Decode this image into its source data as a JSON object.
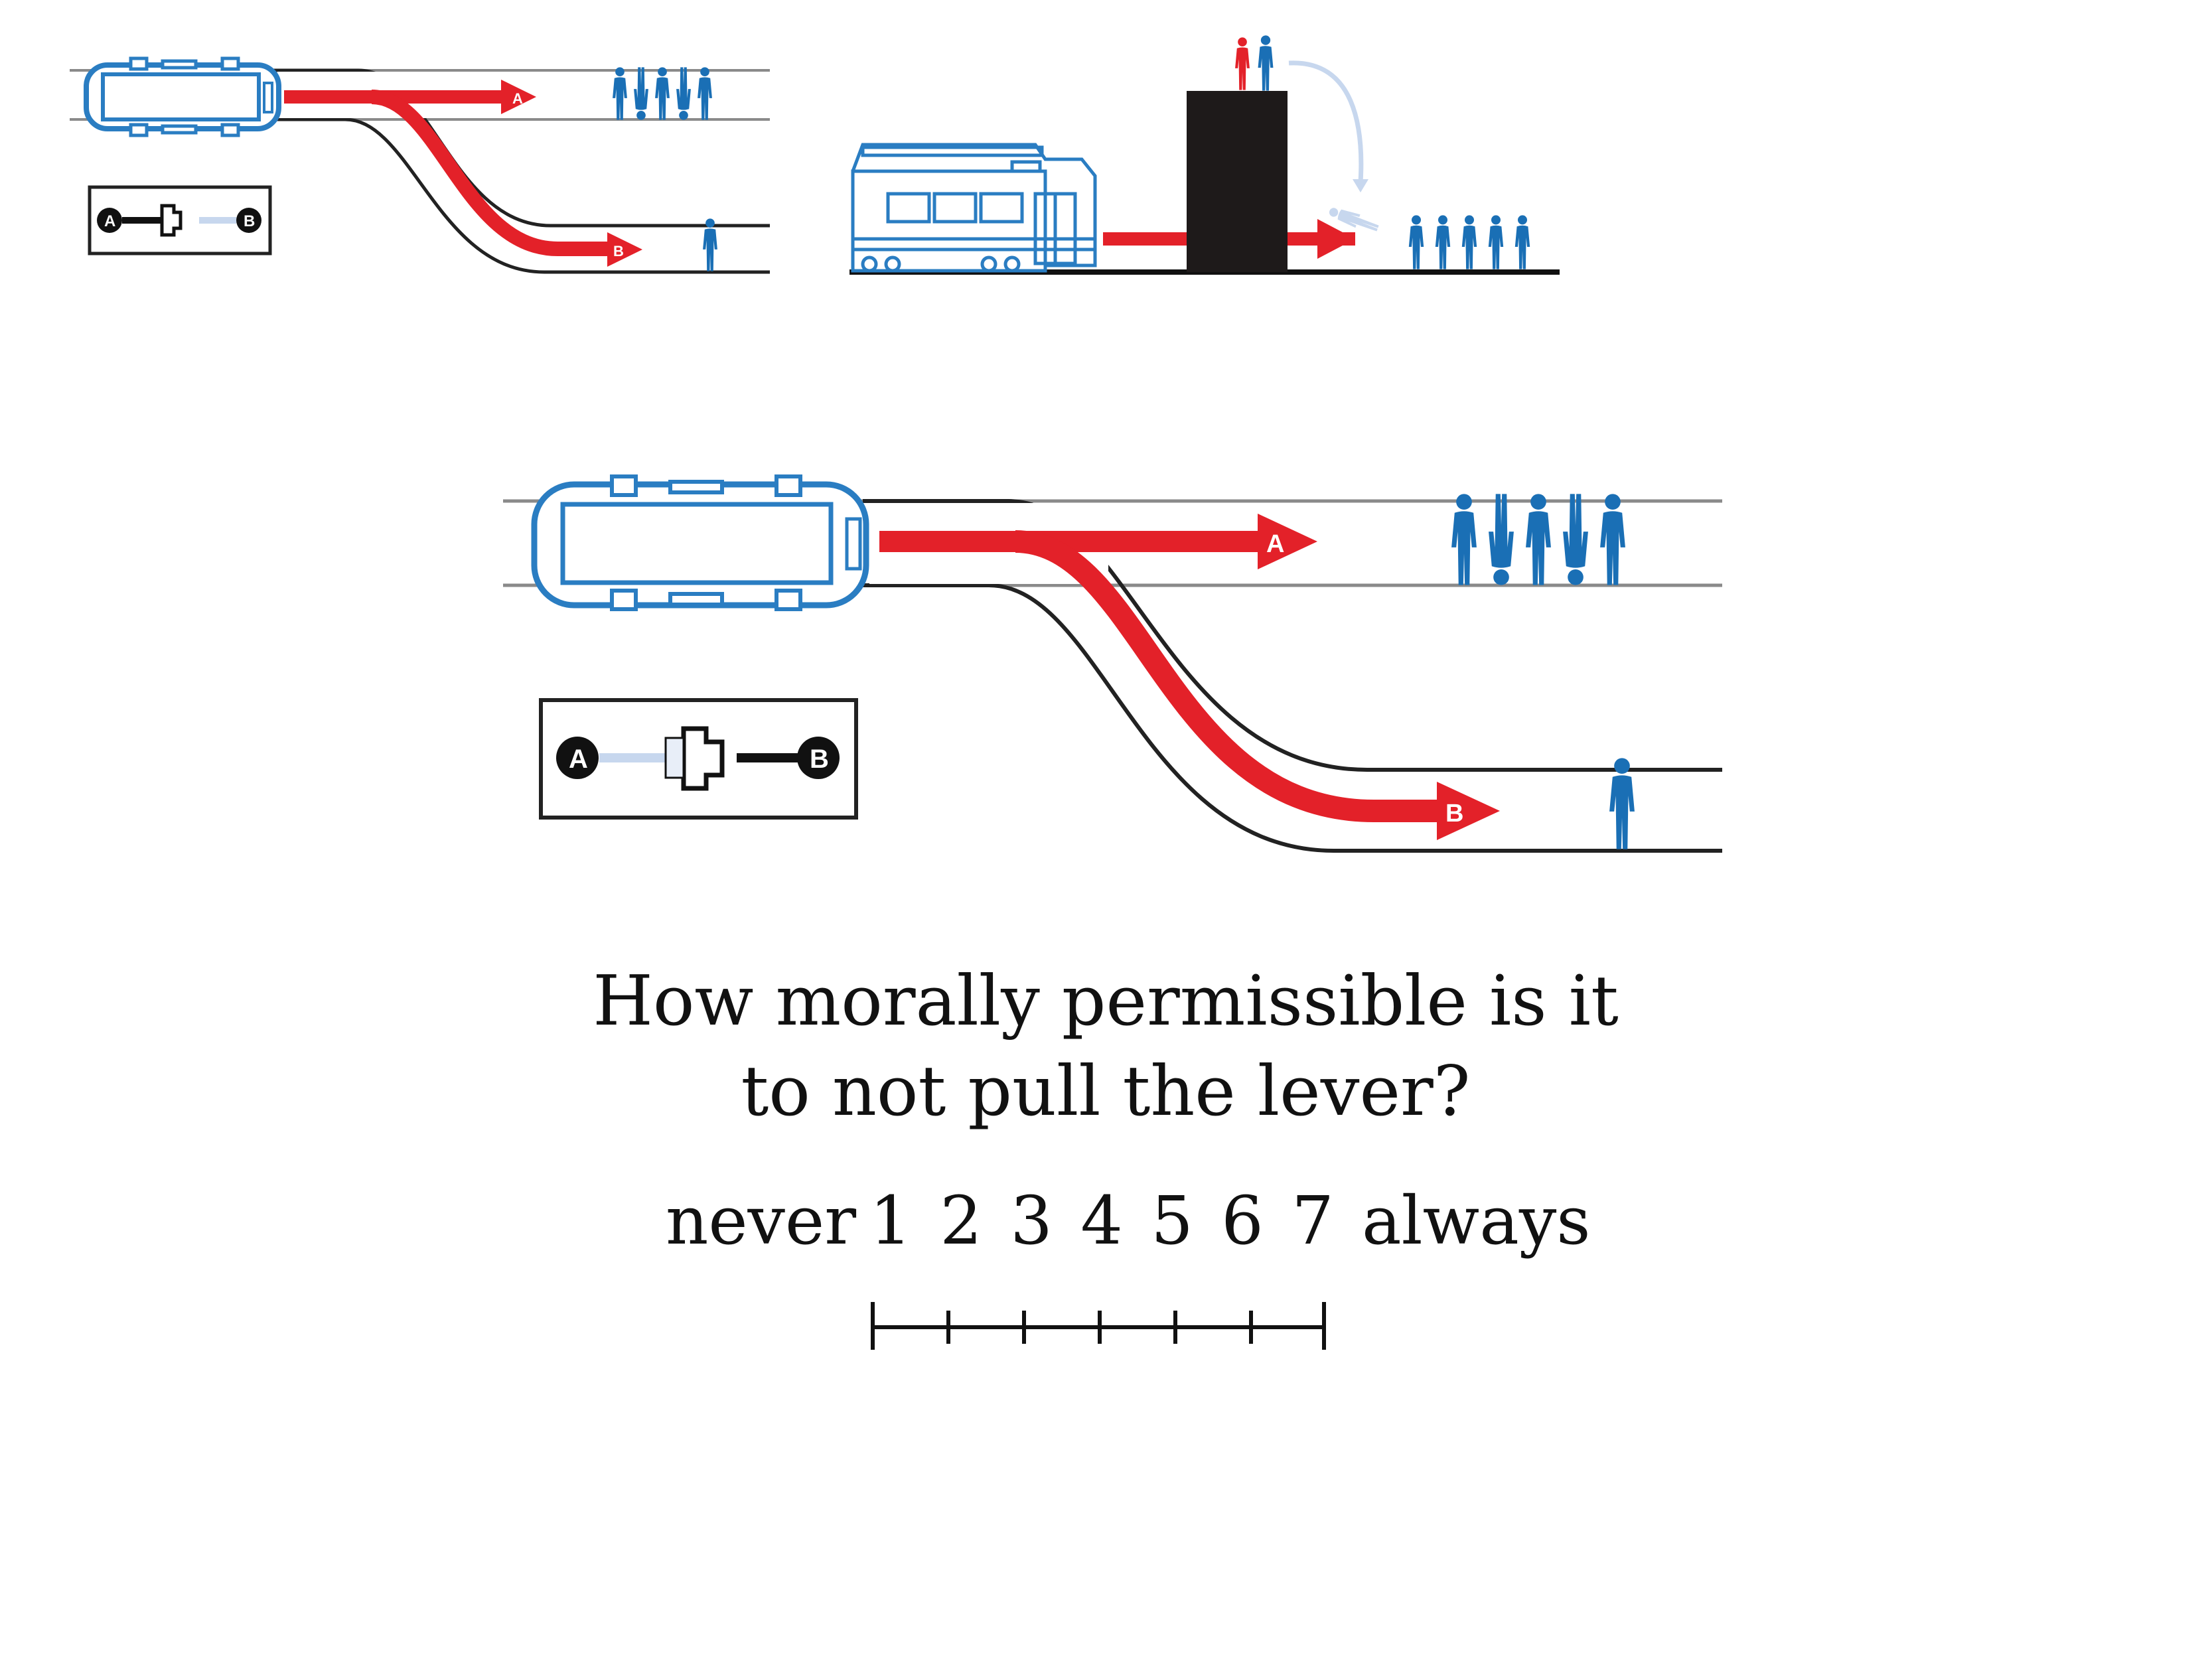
{
  "panels": {
    "small_switch": {
      "track_a_letter": "A",
      "track_b_letter": "B",
      "lever_a": "A",
      "lever_b": "B"
    },
    "footbridge": {},
    "main_switch": {
      "track_a_letter": "A",
      "track_b_letter": "B",
      "lever_a": "A",
      "lever_b": "B"
    }
  },
  "colors": {
    "arrow": "#e32129",
    "person": "#1a6fb5",
    "person_alt": "#e32129",
    "track": "#222222",
    "trolley_outline": "#2a7dc2",
    "ghost": "#c7d7ee"
  },
  "question": {
    "line1": "How morally permissible is it",
    "line2": "to not pull the lever?"
  },
  "scale": {
    "left_label": "never",
    "right_label": "always",
    "points": [
      "1",
      "2",
      "3",
      "4",
      "5",
      "6",
      "7"
    ]
  },
  "icons": [
    "trolley-icon",
    "person-icon",
    "lever-icon",
    "streetcar-icon",
    "footbridge-icon",
    "falling-person-icon"
  ]
}
